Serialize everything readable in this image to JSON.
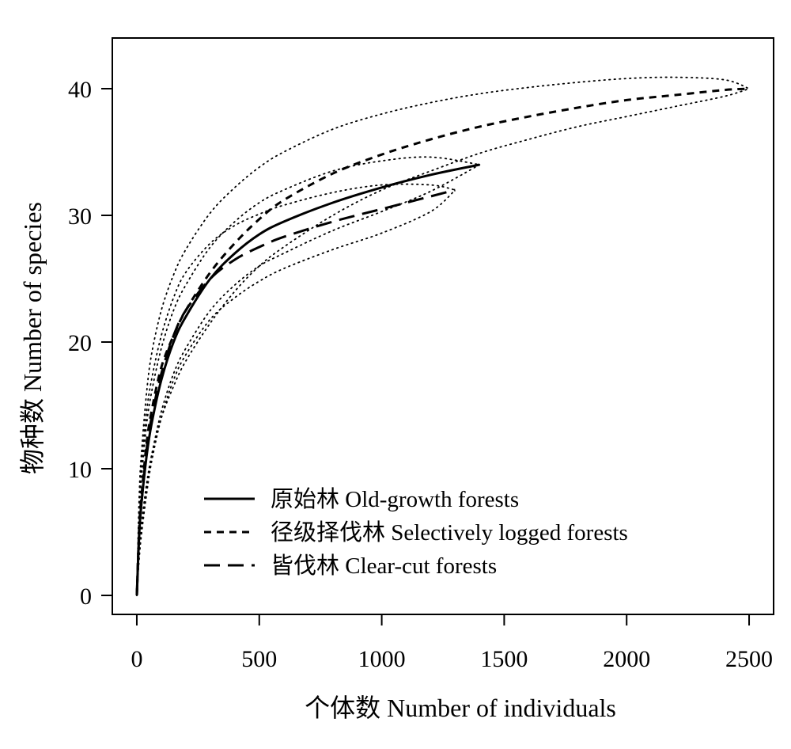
{
  "chart_data": {
    "type": "line",
    "title": "",
    "xlabel": "个体数 Number of individuals",
    "ylabel": "物种数 Number of species",
    "xlim": [
      -100,
      2600
    ],
    "ylim": [
      -1.5,
      44
    ],
    "xticks": [
      0,
      500,
      1000,
      1500,
      2000,
      2500
    ],
    "yticks": [
      0,
      10,
      20,
      30,
      40
    ],
    "grid": false,
    "legend_position": "bottom-center",
    "series": [
      {
        "name": "原始林 Old-growth forests",
        "line_style": "solid",
        "x": [
          0,
          10,
          20,
          40,
          60,
          100,
          150,
          200,
          300,
          400,
          500,
          600,
          800,
          1000,
          1200,
          1400
        ],
        "y": [
          0,
          5,
          7.5,
          11,
          13.5,
          17,
          20,
          22,
          25,
          27,
          28.5,
          29.5,
          31,
          32.2,
          33.2,
          34
        ],
        "ci_upper": [
          0,
          6.5,
          9.5,
          13.5,
          16,
          19.5,
          22.5,
          24.5,
          27.5,
          29.5,
          31,
          32,
          33.5,
          34.3,
          34.6,
          34
        ],
        "ci_lower": [
          0,
          3.8,
          5.8,
          8.8,
          11,
          14.5,
          17.5,
          19.5,
          22.5,
          24.5,
          26,
          27,
          28.8,
          30.3,
          31.9,
          34
        ]
      },
      {
        "name": "径级择伐林 Selectively logged forests",
        "line_style": "short-dash",
        "x": [
          0,
          10,
          20,
          40,
          60,
          100,
          150,
          200,
          300,
          400,
          500,
          600,
          800,
          1000,
          1200,
          1400,
          1600,
          1800,
          2000,
          2200,
          2400,
          2500
        ],
        "y": [
          0,
          5.5,
          8,
          12,
          14.5,
          18,
          20.5,
          22.5,
          25.5,
          27.8,
          29.7,
          31.2,
          33.3,
          34.8,
          36,
          37,
          37.8,
          38.5,
          39.1,
          39.5,
          39.9,
          40
        ],
        "ci_upper": [
          0,
          8,
          11.5,
          16,
          19,
          22.5,
          25.3,
          27.3,
          30.2,
          32.2,
          33.8,
          35,
          36.8,
          38,
          38.9,
          39.6,
          40.1,
          40.5,
          40.8,
          40.9,
          40.7,
          40
        ],
        "ci_lower": [
          0,
          3.5,
          5.5,
          8.5,
          11,
          14,
          16.5,
          18.5,
          21.5,
          24,
          26,
          27.5,
          30,
          32,
          33.5,
          34.9,
          36,
          37,
          37.8,
          38.6,
          39.4,
          40
        ]
      },
      {
        "name": "皆伐林 Clear-cut forests",
        "line_style": "long-dash",
        "x": [
          0,
          10,
          20,
          40,
          60,
          100,
          150,
          200,
          300,
          400,
          500,
          600,
          800,
          1000,
          1200,
          1300
        ],
        "y": [
          0,
          5,
          7.5,
          11.5,
          14,
          17.5,
          20.5,
          22.5,
          25,
          26.5,
          27.5,
          28.3,
          29.5,
          30.5,
          31.5,
          32
        ],
        "ci_upper": [
          0,
          7.5,
          10.5,
          14.5,
          17,
          20.5,
          23.5,
          25.5,
          27.8,
          29.2,
          30.1,
          30.8,
          31.8,
          32.4,
          32.4,
          32
        ],
        "ci_lower": [
          0,
          3,
          5,
          8,
          10.5,
          14,
          17,
          19,
          21.8,
          23.5,
          24.8,
          25.8,
          27.3,
          28.6,
          30.3,
          32
        ]
      }
    ]
  }
}
